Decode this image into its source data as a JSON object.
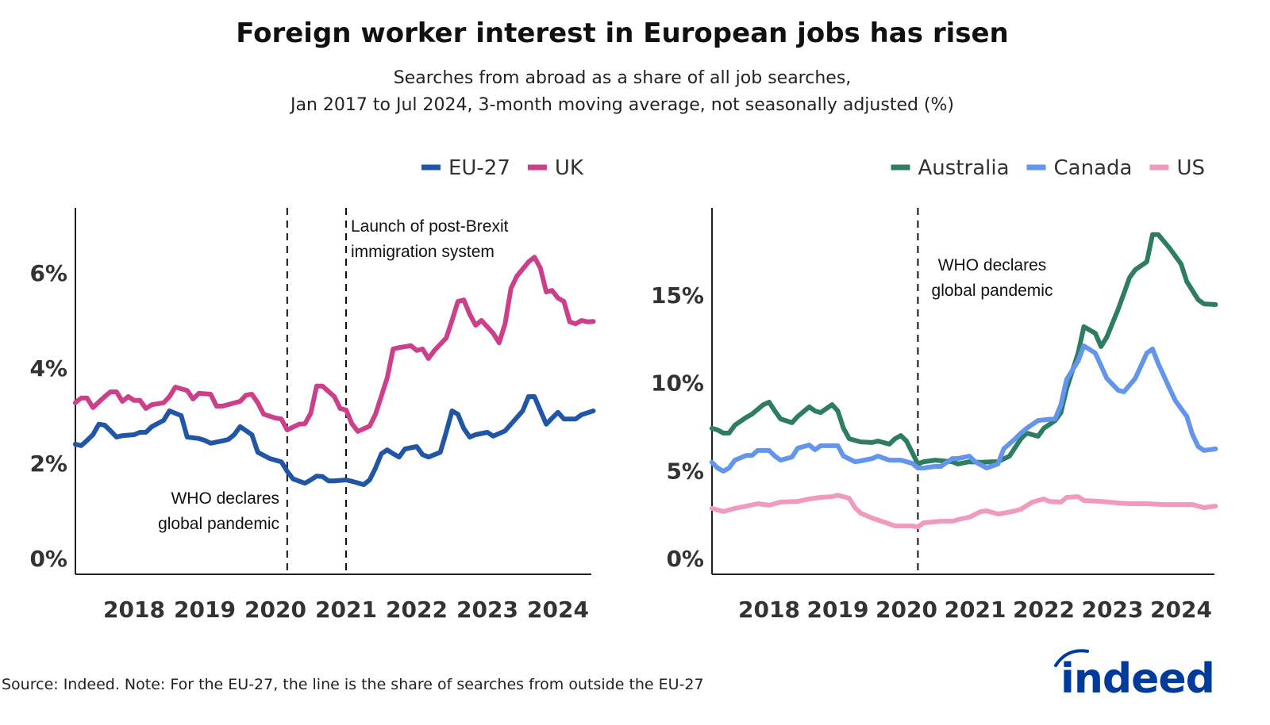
{
  "title": "Foreign worker interest in European jobs has risen",
  "subtitle_line1": "Searches from abroad as a share of all job searches,",
  "subtitle_line2": "Jan 2017 to Jul 2024, 3-month moving average, not seasonally adjusted (%)",
  "source": "Source: Indeed. Note: For the EU-27, the line is the share of searches from outside the EU-27",
  "logo_text": "indeed",
  "logo_color": "#003a9b",
  "chart_data": [
    {
      "type": "line",
      "legend_position": "top-right",
      "ylim": [
        0,
        7.3
      ],
      "yticks": [
        0,
        2,
        4,
        6
      ],
      "ytick_labels": [
        "0%",
        "2%",
        "4%",
        "6%"
      ],
      "xlim": [
        "2017-03",
        "2024-07"
      ],
      "xticks": [
        "2018",
        "2019",
        "2020",
        "2021",
        "2022",
        "2023",
        "2024"
      ],
      "grid": false,
      "annotations": [
        {
          "date": "2020-03",
          "text_lines": [
            "WHO declares",
            "global pandemic"
          ]
        },
        {
          "date": "2021-01",
          "text_lines": [
            "Launch of post-Brexit",
            "immigration system"
          ]
        }
      ],
      "series": [
        {
          "name": "EU-27",
          "color": "#2155a5",
          "x": [
            "2017-03",
            "2017-04",
            "2017-05",
            "2017-06",
            "2017-07",
            "2017-08",
            "2017-09",
            "2017-10",
            "2017-11",
            "2018-01",
            "2018-02",
            "2018-03",
            "2018-04",
            "2018-06",
            "2018-07",
            "2018-09",
            "2018-10",
            "2018-12",
            "2019-01",
            "2019-02",
            "2019-04",
            "2019-05",
            "2019-06",
            "2019-07",
            "2019-09",
            "2019-10",
            "2019-12",
            "2020-02",
            "2020-03",
            "2020-04",
            "2020-06",
            "2020-07",
            "2020-08",
            "2020-09",
            "2020-10",
            "2020-11",
            "2021-01",
            "2021-02",
            "2021-04",
            "2021-05",
            "2021-06",
            "2021-07",
            "2021-08",
            "2021-09",
            "2021-10",
            "2021-11",
            "2022-01",
            "2022-02",
            "2022-03",
            "2022-05",
            "2022-06",
            "2022-07",
            "2022-08",
            "2022-09",
            "2022-10",
            "2022-11",
            "2023-01",
            "2023-02",
            "2023-04",
            "2023-05",
            "2023-07",
            "2023-08",
            "2023-09",
            "2023-11",
            "2023-12",
            "2024-01",
            "2024-02",
            "2024-04",
            "2024-05",
            "2024-07"
          ],
          "y": [
            2.4,
            2.37,
            2.48,
            2.6,
            2.82,
            2.8,
            2.68,
            2.55,
            2.58,
            2.6,
            2.65,
            2.65,
            2.77,
            2.9,
            3.1,
            3.0,
            2.55,
            2.52,
            2.48,
            2.42,
            2.47,
            2.5,
            2.6,
            2.77,
            2.6,
            2.23,
            2.1,
            2.03,
            1.83,
            1.67,
            1.58,
            1.65,
            1.73,
            1.72,
            1.63,
            1.63,
            1.65,
            1.62,
            1.55,
            1.65,
            1.9,
            2.2,
            2.28,
            2.2,
            2.13,
            2.3,
            2.35,
            2.18,
            2.13,
            2.23,
            2.65,
            3.1,
            3.03,
            2.73,
            2.55,
            2.6,
            2.65,
            2.57,
            2.68,
            2.82,
            3.1,
            3.4,
            3.4,
            2.82,
            2.95,
            3.07,
            2.93,
            2.93,
            3.02,
            3.1
          ]
        },
        {
          "name": "UK",
          "color": "#cc3f8a",
          "x": [
            "2017-03",
            "2017-04",
            "2017-05",
            "2017-06",
            "2017-08",
            "2017-09",
            "2017-10",
            "2017-11",
            "2017-12",
            "2018-01",
            "2018-02",
            "2018-03",
            "2018-04",
            "2018-06",
            "2018-07",
            "2018-08",
            "2018-10",
            "2018-11",
            "2018-12",
            "2019-02",
            "2019-03",
            "2019-04",
            "2019-07",
            "2019-08",
            "2019-09",
            "2019-10",
            "2019-11",
            "2020-01",
            "2020-02",
            "2020-03",
            "2020-05",
            "2020-06",
            "2020-07",
            "2020-08",
            "2020-09",
            "2020-11",
            "2020-12",
            "2021-01",
            "2021-02",
            "2021-03",
            "2021-05",
            "2021-06",
            "2021-08",
            "2021-09",
            "2021-10",
            "2021-12",
            "2022-01",
            "2022-02",
            "2022-03",
            "2022-04",
            "2022-06",
            "2022-07",
            "2022-08",
            "2022-09",
            "2022-10",
            "2022-11",
            "2022-12",
            "2023-02",
            "2023-03",
            "2023-04",
            "2023-05",
            "2023-06",
            "2023-08",
            "2023-09",
            "2023-10",
            "2023-11",
            "2023-12",
            "2024-01",
            "2024-02",
            "2024-03",
            "2024-04",
            "2024-05",
            "2024-06",
            "2024-07"
          ],
          "y": [
            3.27,
            3.37,
            3.37,
            3.17,
            3.4,
            3.5,
            3.5,
            3.3,
            3.4,
            3.32,
            3.32,
            3.15,
            3.23,
            3.27,
            3.4,
            3.6,
            3.53,
            3.35,
            3.47,
            3.45,
            3.2,
            3.2,
            3.3,
            3.43,
            3.45,
            3.27,
            3.03,
            2.95,
            2.93,
            2.7,
            2.82,
            2.83,
            3.05,
            3.62,
            3.62,
            3.4,
            3.15,
            3.12,
            2.83,
            2.67,
            2.78,
            3.03,
            3.8,
            4.4,
            4.43,
            4.47,
            4.37,
            4.4,
            4.2,
            4.37,
            4.63,
            5.0,
            5.4,
            5.43,
            5.13,
            4.9,
            5.0,
            4.73,
            4.53,
            4.93,
            5.67,
            5.93,
            6.23,
            6.33,
            6.1,
            5.6,
            5.63,
            5.47,
            5.4,
            4.97,
            4.93,
            5.0,
            4.97,
            4.98
          ]
        }
      ]
    },
    {
      "type": "line",
      "legend_position": "top-right",
      "ylim": [
        0,
        19.5
      ],
      "yticks": [
        0,
        5,
        10,
        15
      ],
      "ytick_labels": [
        "0%",
        "5%",
        "10%",
        "15%"
      ],
      "xlim": [
        "2017-03",
        "2024-07"
      ],
      "xticks": [
        "2018",
        "2019",
        "2020",
        "2021",
        "2022",
        "2023",
        "2024"
      ],
      "grid": false,
      "annotations": [
        {
          "date": "2020-03",
          "text_lines": [
            "WHO declares",
            "global pandemic"
          ]
        }
      ],
      "series": [
        {
          "name": "Australia",
          "color": "#2e7d63",
          "x": [
            "2017-03",
            "2017-04",
            "2017-05",
            "2017-06",
            "2017-07",
            "2017-09",
            "2017-10",
            "2017-12",
            "2018-01",
            "2018-02",
            "2018-03",
            "2018-05",
            "2018-06",
            "2018-08",
            "2018-09",
            "2018-10",
            "2018-12",
            "2019-01",
            "2019-02",
            "2019-03",
            "2019-05",
            "2019-07",
            "2019-08",
            "2019-10",
            "2019-11",
            "2019-12",
            "2020-01",
            "2020-03",
            "2020-04",
            "2020-06",
            "2020-09",
            "2020-10",
            "2020-12",
            "2021-02",
            "2021-04",
            "2021-05",
            "2021-07",
            "2021-09",
            "2021-10",
            "2021-12",
            "2022-01",
            "2022-03",
            "2022-04",
            "2022-05",
            "2022-07",
            "2022-08",
            "2022-10",
            "2022-11",
            "2022-12",
            "2023-02",
            "2023-04",
            "2023-05",
            "2023-07",
            "2023-08",
            "2023-09",
            "2023-11",
            "2023-12",
            "2024-01",
            "2024-02",
            "2024-04",
            "2024-05",
            "2024-07"
          ],
          "y": [
            7.41,
            7.32,
            7.14,
            7.14,
            7.59,
            8.04,
            8.22,
            8.76,
            8.9,
            8.4,
            7.95,
            7.73,
            8.09,
            8.63,
            8.4,
            8.31,
            8.76,
            8.4,
            7.41,
            6.82,
            6.64,
            6.6,
            6.69,
            6.51,
            6.82,
            7.0,
            6.69,
            5.38,
            5.51,
            5.6,
            5.51,
            5.38,
            5.51,
            5.47,
            5.51,
            5.51,
            5.83,
            6.82,
            7.14,
            6.96,
            7.41,
            7.86,
            8.31,
            9.67,
            11.7,
            13.2,
            12.83,
            12.07,
            12.6,
            14.19,
            16.0,
            16.45,
            16.9,
            18.45,
            18.45,
            17.67,
            17.22,
            16.77,
            15.77,
            14.73,
            14.5,
            14.46
          ]
        },
        {
          "name": "Canada",
          "color": "#6495ed",
          "x": [
            "2017-03",
            "2017-04",
            "2017-05",
            "2017-06",
            "2017-07",
            "2017-09",
            "2017-10",
            "2017-11",
            "2018-01",
            "2018-02",
            "2018-03",
            "2018-05",
            "2018-06",
            "2018-08",
            "2018-09",
            "2018-10",
            "2018-12",
            "2019-01",
            "2019-02",
            "2019-04",
            "2019-05",
            "2019-07",
            "2019-08",
            "2019-10",
            "2019-12",
            "2020-02",
            "2020-03",
            "2020-04",
            "2020-06",
            "2020-07",
            "2020-09",
            "2020-10",
            "2020-12",
            "2021-01",
            "2021-03",
            "2021-05",
            "2021-06",
            "2021-08",
            "2021-09",
            "2021-10",
            "2021-12",
            "2022-03",
            "2022-04",
            "2022-05",
            "2022-07",
            "2022-08",
            "2022-10",
            "2022-11",
            "2022-12",
            "2023-02",
            "2023-03",
            "2023-05",
            "2023-07",
            "2023-08",
            "2023-09",
            "2023-11",
            "2023-12",
            "2024-02",
            "2024-03",
            "2024-04",
            "2024-05",
            "2024-07"
          ],
          "y": [
            5.47,
            5.15,
            4.97,
            5.15,
            5.6,
            5.87,
            5.87,
            6.15,
            6.15,
            5.83,
            5.6,
            5.78,
            6.28,
            6.46,
            6.19,
            6.42,
            6.42,
            6.42,
            5.83,
            5.51,
            5.56,
            5.69,
            5.83,
            5.6,
            5.6,
            5.42,
            5.15,
            5.15,
            5.24,
            5.24,
            5.69,
            5.69,
            5.83,
            5.51,
            5.15,
            5.38,
            6.24,
            6.82,
            7.14,
            7.41,
            7.86,
            7.96,
            8.76,
            10.2,
            11.25,
            12.11,
            11.7,
            10.98,
            10.26,
            9.58,
            9.49,
            10.26,
            11.7,
            11.93,
            11.1,
            9.67,
            8.99,
            8.09,
            7.05,
            6.37,
            6.15,
            6.24
          ]
        },
        {
          "name": "US",
          "color": "#f09ac0",
          "x": [
            "2017-03",
            "2017-04",
            "2017-05",
            "2017-07",
            "2017-09",
            "2017-11",
            "2018-01",
            "2018-03",
            "2018-06",
            "2018-08",
            "2018-10",
            "2018-12",
            "2019-01",
            "2019-03",
            "2019-04",
            "2019-05",
            "2019-07",
            "2019-09",
            "2019-11",
            "2020-02",
            "2020-03",
            "2020-04",
            "2020-07",
            "2020-09",
            "2020-10",
            "2020-12",
            "2021-02",
            "2021-03",
            "2021-05",
            "2021-06",
            "2021-08",
            "2021-09",
            "2021-11",
            "2022-01",
            "2022-02",
            "2022-04",
            "2022-05",
            "2022-07",
            "2022-08",
            "2022-11",
            "2023-02",
            "2023-04",
            "2023-07",
            "2023-10",
            "2024-01",
            "2024-03",
            "2024-05",
            "2024-07"
          ],
          "y": [
            2.85,
            2.76,
            2.67,
            2.85,
            2.98,
            3.12,
            3.03,
            3.21,
            3.25,
            3.39,
            3.48,
            3.52,
            3.6,
            3.43,
            2.89,
            2.58,
            2.3,
            2.08,
            1.85,
            1.85,
            1.8,
            2.03,
            2.12,
            2.12,
            2.21,
            2.35,
            2.67,
            2.71,
            2.53,
            2.58,
            2.71,
            2.8,
            3.21,
            3.39,
            3.25,
            3.21,
            3.48,
            3.52,
            3.3,
            3.25,
            3.16,
            3.12,
            3.12,
            3.07,
            3.07,
            3.07,
            2.89,
            2.98
          ]
        }
      ]
    }
  ]
}
